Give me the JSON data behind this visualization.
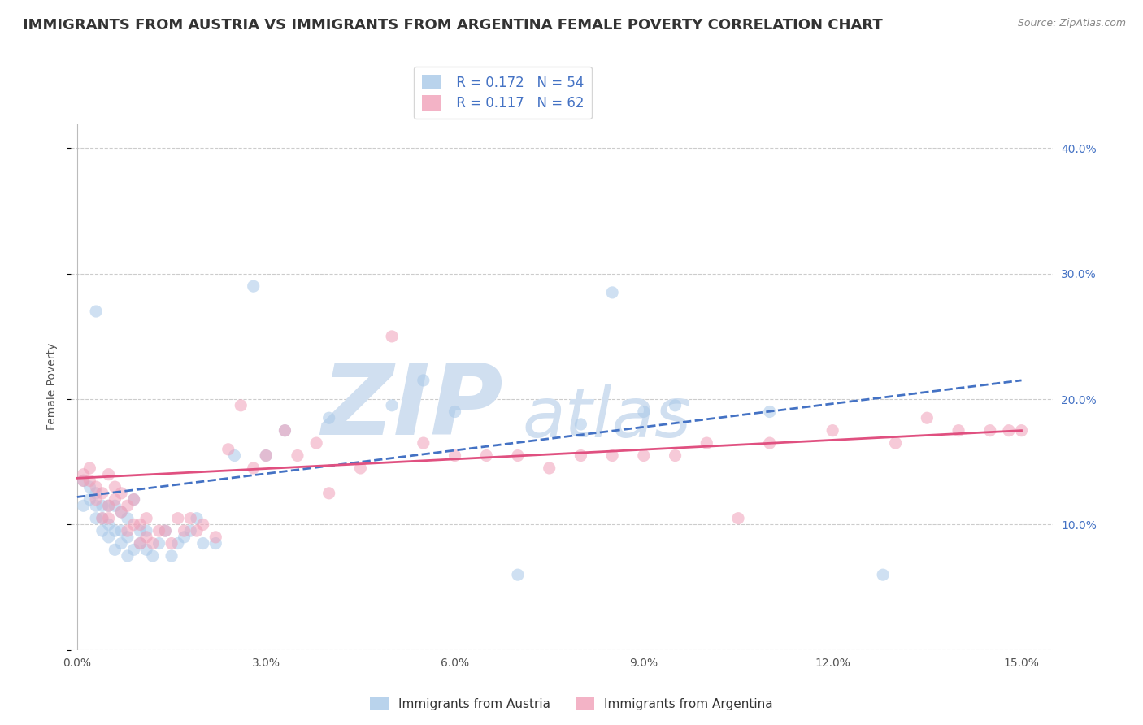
{
  "title": "IMMIGRANTS FROM AUSTRIA VS IMMIGRANTS FROM ARGENTINA FEMALE POVERTY CORRELATION CHART",
  "source": "Source: ZipAtlas.com",
  "ylabel": "Female Poverty",
  "xlim": [
    -0.001,
    0.155
  ],
  "ylim": [
    0.0,
    0.42
  ],
  "xticks": [
    0.0,
    0.03,
    0.06,
    0.09,
    0.12,
    0.15
  ],
  "xtick_labels": [
    "0.0%",
    "3.0%",
    "6.0%",
    "9.0%",
    "12.0%",
    "15.0%"
  ],
  "yticks": [
    0.0,
    0.1,
    0.2,
    0.3,
    0.4
  ],
  "ytick_labels": [
    "",
    "10.0%",
    "20.0%",
    "30.0%",
    "40.0%"
  ],
  "austria_color": "#a8c8e8",
  "argentina_color": "#f0a0b8",
  "austria_R": 0.172,
  "austria_N": 54,
  "argentina_R": 0.117,
  "argentina_N": 62,
  "watermark_zip": "ZIP",
  "watermark_atlas": "atlas",
  "watermark_color": "#d0dff0",
  "austria_scatter_x": [
    0.001,
    0.001,
    0.002,
    0.002,
    0.003,
    0.003,
    0.003,
    0.004,
    0.004,
    0.004,
    0.005,
    0.005,
    0.005,
    0.006,
    0.006,
    0.006,
    0.007,
    0.007,
    0.007,
    0.008,
    0.008,
    0.008,
    0.009,
    0.009,
    0.01,
    0.01,
    0.011,
    0.011,
    0.012,
    0.013,
    0.014,
    0.015,
    0.016,
    0.017,
    0.018,
    0.019,
    0.02,
    0.022,
    0.025,
    0.028,
    0.03,
    0.033,
    0.04,
    0.05,
    0.055,
    0.06,
    0.07,
    0.08,
    0.085,
    0.09,
    0.095,
    0.11,
    0.128,
    0.003
  ],
  "austria_scatter_y": [
    0.135,
    0.115,
    0.13,
    0.12,
    0.105,
    0.115,
    0.125,
    0.095,
    0.105,
    0.115,
    0.09,
    0.1,
    0.115,
    0.08,
    0.095,
    0.115,
    0.085,
    0.095,
    0.11,
    0.075,
    0.09,
    0.105,
    0.08,
    0.12,
    0.085,
    0.095,
    0.08,
    0.095,
    0.075,
    0.085,
    0.095,
    0.075,
    0.085,
    0.09,
    0.095,
    0.105,
    0.085,
    0.085,
    0.155,
    0.29,
    0.155,
    0.175,
    0.185,
    0.195,
    0.215,
    0.19,
    0.06,
    0.18,
    0.285,
    0.19,
    0.195,
    0.19,
    0.06,
    0.27
  ],
  "argentina_scatter_x": [
    0.001,
    0.001,
    0.002,
    0.002,
    0.003,
    0.003,
    0.004,
    0.004,
    0.005,
    0.005,
    0.005,
    0.006,
    0.006,
    0.007,
    0.007,
    0.008,
    0.008,
    0.009,
    0.009,
    0.01,
    0.01,
    0.011,
    0.011,
    0.012,
    0.013,
    0.014,
    0.015,
    0.016,
    0.017,
    0.018,
    0.019,
    0.02,
    0.022,
    0.024,
    0.026,
    0.028,
    0.03,
    0.033,
    0.035,
    0.038,
    0.04,
    0.045,
    0.05,
    0.055,
    0.06,
    0.065,
    0.07,
    0.075,
    0.08,
    0.085,
    0.09,
    0.095,
    0.1,
    0.11,
    0.12,
    0.13,
    0.135,
    0.14,
    0.145,
    0.148,
    0.15,
    0.105
  ],
  "argentina_scatter_y": [
    0.14,
    0.135,
    0.135,
    0.145,
    0.12,
    0.13,
    0.105,
    0.125,
    0.105,
    0.115,
    0.14,
    0.12,
    0.13,
    0.11,
    0.125,
    0.095,
    0.115,
    0.1,
    0.12,
    0.085,
    0.1,
    0.09,
    0.105,
    0.085,
    0.095,
    0.095,
    0.085,
    0.105,
    0.095,
    0.105,
    0.095,
    0.1,
    0.09,
    0.16,
    0.195,
    0.145,
    0.155,
    0.175,
    0.155,
    0.165,
    0.125,
    0.145,
    0.25,
    0.165,
    0.155,
    0.155,
    0.155,
    0.145,
    0.155,
    0.155,
    0.155,
    0.155,
    0.165,
    0.165,
    0.175,
    0.165,
    0.185,
    0.175,
    0.175,
    0.175,
    0.175,
    0.105
  ],
  "scatter_size": 120,
  "austria_trend_x": [
    0.0,
    0.15
  ],
  "austria_trend_y": [
    0.122,
    0.215
  ],
  "argentina_trend_x": [
    0.0,
    0.15
  ],
  "argentina_trend_y": [
    0.137,
    0.175
  ],
  "grid_color": "#cccccc",
  "background_color": "#ffffff",
  "title_fontsize": 13,
  "axis_label_fontsize": 10,
  "tick_fontsize": 10,
  "legend_fontsize": 12,
  "right_tick_color": "#4472c4",
  "austria_trend_color": "#4472c4",
  "argentina_trend_color": "#e05080"
}
